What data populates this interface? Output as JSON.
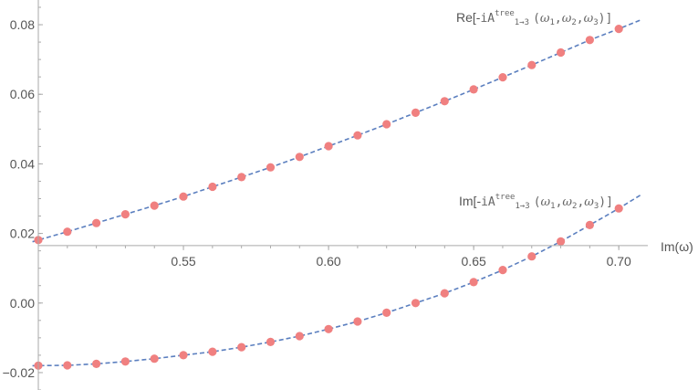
{
  "chart_data": {
    "type": "scatter",
    "xlabel": "Im(ω)",
    "x_ticks": [
      "0.55",
      "0.60",
      "0.65",
      "0.70"
    ],
    "x_tick_values": [
      0.55,
      0.6,
      0.65,
      0.7
    ],
    "y_ticks": [
      "−0.02",
      "0.00",
      "0.02",
      "0.04",
      "0.06",
      "0.08"
    ],
    "y_tick_values": [
      -0.02,
      0.0,
      0.02,
      0.04,
      0.06,
      0.08
    ],
    "xlim": [
      0.5,
      0.71
    ],
    "ylim": [
      -0.025,
      0.085
    ],
    "grid": false,
    "x": [
      0.5,
      0.51,
      0.52,
      0.53,
      0.54,
      0.55,
      0.56,
      0.57,
      0.58,
      0.59,
      0.6,
      0.61,
      0.62,
      0.63,
      0.64,
      0.65,
      0.66,
      0.67,
      0.68,
      0.69,
      0.7
    ],
    "series": [
      {
        "name_prefix": "Re[-",
        "name_mono": "iA",
        "name_sub_top": "tree",
        "name_sub_bottom": "1→3",
        "name_args_open": "(",
        "w1": "ω",
        "w1_sub": "1",
        "w2": "ω",
        "w2_sub": "2",
        "w3": "ω",
        "w3_sub": "3",
        "name_args_close": ")]",
        "values": [
          0.0181,
          0.0205,
          0.023,
          0.0255,
          0.028,
          0.0306,
          0.0334,
          0.0362,
          0.039,
          0.042,
          0.0451,
          0.0482,
          0.0514,
          0.0547,
          0.058,
          0.0614,
          0.0649,
          0.0684,
          0.072,
          0.0756,
          0.0788
        ]
      },
      {
        "name_prefix": "Im[-",
        "name_mono": "iA",
        "name_sub_top": "tree",
        "name_sub_bottom": "1→3",
        "name_args_open": "(",
        "w1": "ω",
        "w1_sub": "1",
        "w2": "ω",
        "w2_sub": "2",
        "w3": "ω",
        "w3_sub": "3",
        "name_args_close": ")]",
        "values": [
          -0.018,
          -0.0179,
          -0.0175,
          -0.0168,
          -0.016,
          -0.015,
          -0.014,
          -0.0127,
          -0.0112,
          -0.0095,
          -0.0075,
          -0.0053,
          -0.0028,
          0.0,
          0.0028,
          0.006,
          0.0095,
          0.0134,
          0.0177,
          0.0224,
          0.0272
        ]
      }
    ],
    "colors": {
      "curve": "#5b7fbf",
      "points": "#f08080",
      "axis": "#aaaaaa",
      "text": "#555555"
    }
  }
}
